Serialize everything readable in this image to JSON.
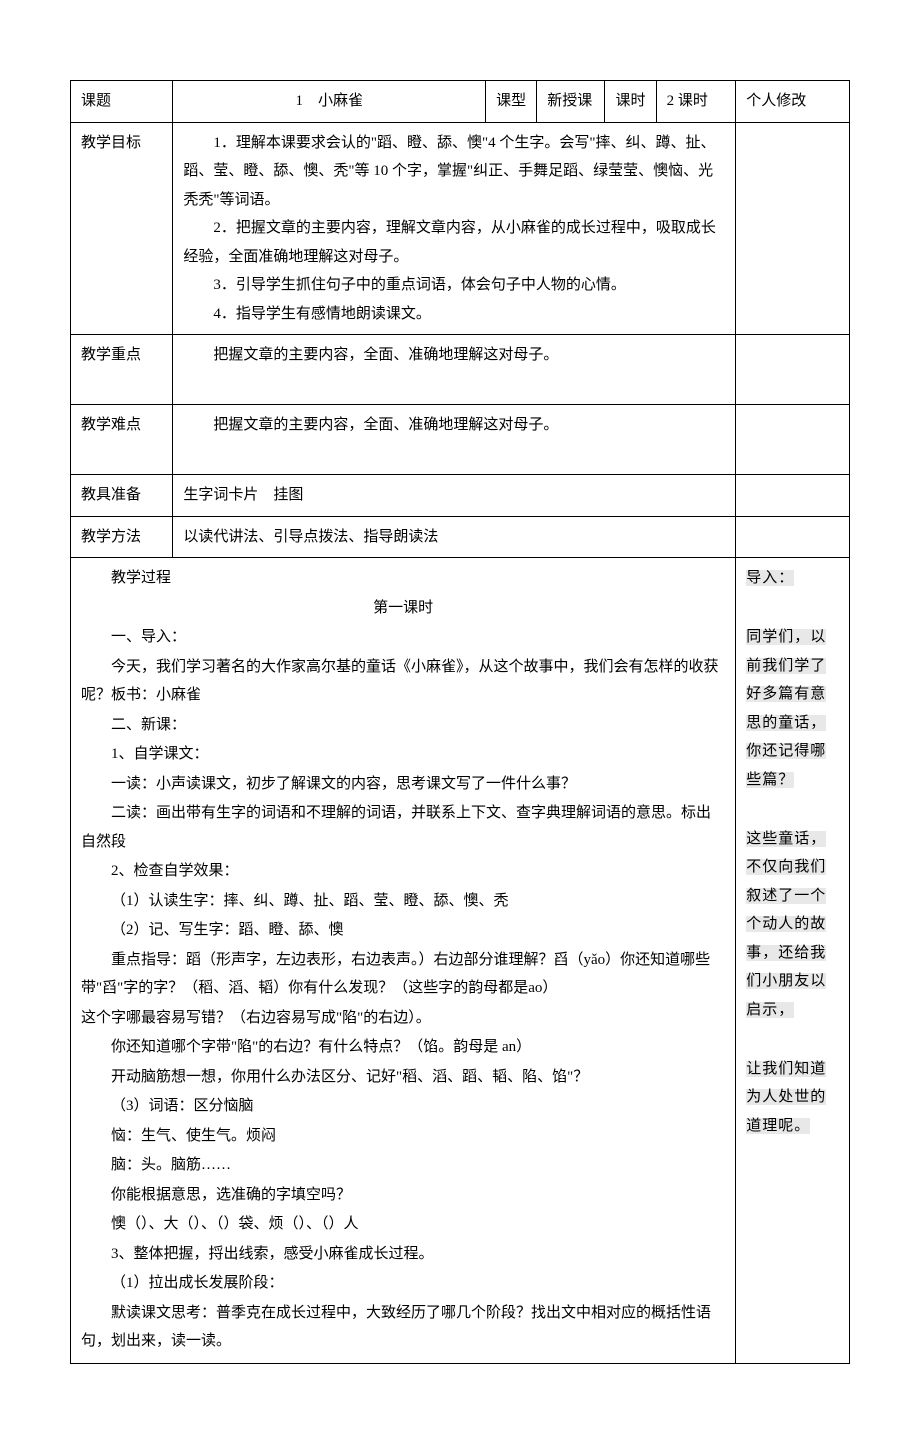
{
  "row1": {
    "label": "课题",
    "title": "1　小麻雀",
    "typeLabel": "课型",
    "typeValue": "新授课",
    "periodLabel": "课时",
    "periodValue": "2 课时",
    "notesLabel": "个人修改"
  },
  "row2": {
    "label": "教学目标",
    "g1": "1．理解本课要求会认的\"蹈、瞪、舔、懊\"4 个生字。会写\"摔、纠、蹲、扯、蹈、莹、瞪、舔、懊、秃\"等 10 个字，掌握\"纠正、手舞足蹈、绿莹莹、懊恼、光秃秃\"等词语。",
    "g2": "2．把握文章的主要内容，理解文章内容，从小麻雀的成长过程中，吸取成长经验，全面准确地理解这对母子。",
    "g3": "3．引导学生抓住句子中的重点词语，体会句子中人物的心情。",
    "g4": "4．指导学生有感情地朗读课文。"
  },
  "row3": {
    "label": "教学重点",
    "content": "把握文章的主要内容，全面、准确地理解这对母子。"
  },
  "row4": {
    "label": "教学难点",
    "content": "把握文章的主要内容，全面、准确地理解这对母子。"
  },
  "row5": {
    "label": "教具准备",
    "content": "生字词卡片　挂图"
  },
  "row6": {
    "label": "教学方法",
    "content": "以读代讲法、引导点拨法、指导朗读法"
  },
  "process": {
    "label": "教学过程",
    "subtitle": "第一课时",
    "s1": "一、导入：",
    "s1_1": "今天，我们学习著名的大作家高尔基的童话《小麻雀》，从这个故事中，我们会有怎样的收获呢？板书：小麻雀",
    "s2": "二、新课：",
    "s2_1": "1、自学课文：",
    "s2_1_1": "一读：小声读课文，初步了解课文的内容，思考课文写了一件什么事？",
    "s2_1_2": "二读：画出带有生字的词语和不理解的词语，并联系上下文、查字典理解词语的意思。标出自然段",
    "s2_2": "2、检查自学效果：",
    "s2_2_1": "（1）认读生字：摔、纠、蹲、扯、蹈、莹、瞪、舔、懊、秃",
    "s2_2_2": "（2）记、写生字：蹈、瞪、舔、懊",
    "s2_2_3": "重点指导：蹈（形声字，左边表形，右边表声。）右边部分谁理解？舀（yǎo）你还知道哪些带\"舀\"字的字？（稻、滔、韬）你有什么发现？（这些字的韵母都是ao）",
    "s2_2_4": "这个字哪最容易写错？（右边容易写成\"陷\"的右边）。",
    "s2_2_5": "你还知道哪个字带\"陷\"的右边？有什么特点？（馅。韵母是 an）",
    "s2_2_6": "开动脑筋想一想，你用什么办法区分、记好\"稻、滔、蹈、韬、陷、馅\"？",
    "s2_2_7": "（3）词语：区分恼脑",
    "s2_2_8": "恼：生气、使生气。烦闷",
    "s2_2_9": "脑：头。脑筋……",
    "s2_2_10": "你能根据意思，选准确的字填空吗？",
    "s2_2_11": "懊（）、大（）、（）袋、烦（）、（）人",
    "s2_3": "3、整体把握，捋出线索，感受小麻雀成长过程。",
    "s2_3_1": "（1）拉出成长发展阶段：",
    "s2_3_2": "默读课文思考：普季克在成长过程中，大致经历了哪几个阶段？找出文中相对应的概括性语句，划出来，读一读。"
  },
  "notes": {
    "n1": "导入：",
    "n2": "同学们，以前我们学了好多篇有意思的童话，你还记得哪些篇？",
    "n3": "这些童话，不仅向我们叙述了一个个动人的故事，还给我们小朋友以启示，",
    "n4": "让我们知道为人处世的道理呢。"
  },
  "style": {
    "highlight_bg": "#e8e8e8",
    "border_color": "#000000",
    "font_family": "SimSun",
    "base_fontsize": 15
  }
}
